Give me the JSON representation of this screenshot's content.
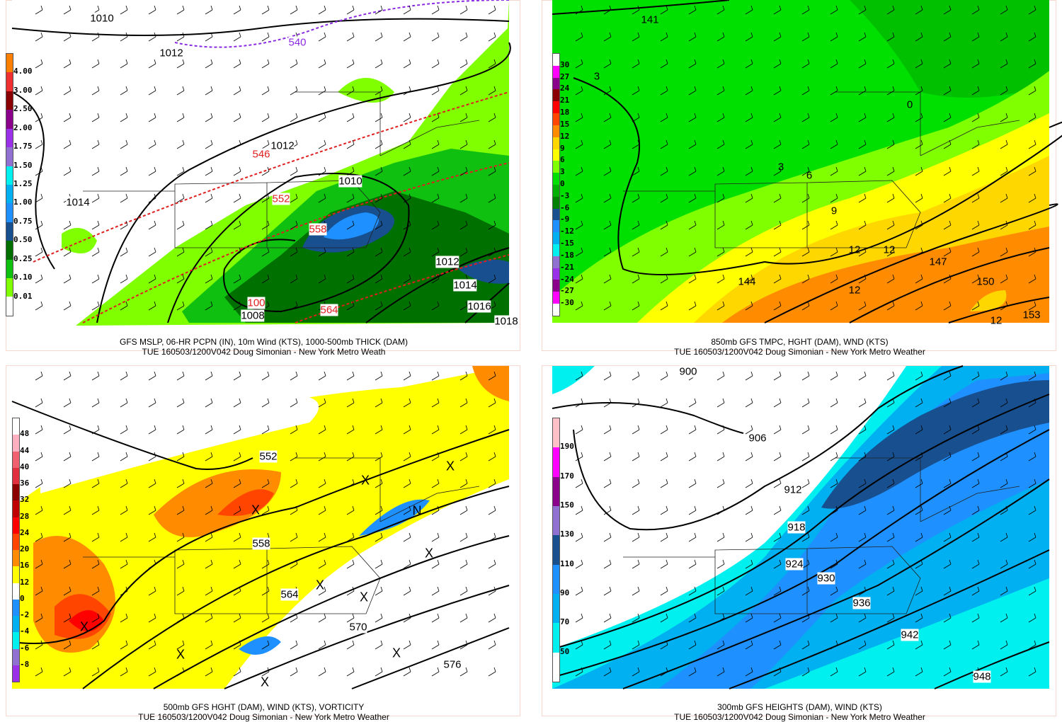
{
  "panels": [
    {
      "id": "mslp-precip",
      "caption": [
        "GFS MSLP, 06-HR PCPN (IN), 10m Wind (KTS), 1000-500mb THICK (DAM)",
        "TUE 160503/1200V042 Doug Simonian - New York Metro Weath"
      ],
      "colorbar": {
        "colors": [
          "#ff8000",
          "#ee3030",
          "#8b0000",
          "#8b008b",
          "#9a30e8",
          "#9070d0",
          "#00f0f0",
          "#00b0f0",
          "#1e90ff",
          "#174f8f",
          "#007000",
          "#10c010",
          "#80ff00",
          "#ffffff"
        ],
        "labels": [
          "4.00",
          "3.00",
          "2.50",
          "2.00",
          "1.75",
          "1.50",
          "1.25",
          "1.00",
          "0.75",
          "0.50",
          "0.25",
          "0.10",
          "0.01"
        ]
      },
      "contour_labels": [
        "1010",
        "1012",
        "540",
        "546",
        "1012",
        "1010",
        "552",
        "558",
        "1014",
        "1012",
        "1014",
        "1016",
        "1018",
        "564",
        "1008",
        "100"
      ],
      "markers": []
    },
    {
      "id": "850mb",
      "caption": [
        "850mb GFS TMPC, HGHT (DAM), WND (KTS)",
        "TUE 160503/1200V042 Doug Simonian - New York Metro Weather"
      ],
      "colorbar": {
        "colors": [
          "#ffffff",
          "#ff00ff",
          "#8b008b",
          "#8b0000",
          "#ff0000",
          "#ff4500",
          "#ff8c00",
          "#ffd700",
          "#ffff00",
          "#80ff00",
          "#00e000",
          "#00b000",
          "#008000",
          "#174f8f",
          "#1e90ff",
          "#00b0f0",
          "#00f0f0",
          "#9070d0",
          "#9a30e8",
          "#8b008b",
          "#ff00ff",
          "#ffffff"
        ],
        "labels": [
          "30",
          "27",
          "24",
          "21",
          "18",
          "15",
          "12",
          "9",
          "6",
          "3",
          "0",
          "-3",
          "-6",
          "-9",
          "-12",
          "-15",
          "-18",
          "-21",
          "-24",
          "-27",
          "-30"
        ]
      },
      "contour_labels": [
        "141",
        "3",
        "0",
        "3",
        "6",
        "9",
        "12",
        "12",
        "144",
        "147",
        "150",
        "12",
        "12",
        "153"
      ],
      "markers": []
    },
    {
      "id": "500mb",
      "caption": [
        "500mb GFS HGHT (DAM), WIND (KTS), VORTICITY",
        "TUE 160503/1200V042 Doug Simonian - New York Metro Weather"
      ],
      "colorbar": {
        "colors": [
          "#ffffff",
          "#ffb0c0",
          "#f06070",
          "#e03040",
          "#8b0000",
          "#c00000",
          "#ff0000",
          "#ff4500",
          "#ff8c00",
          "#ffff00",
          "#ffffff",
          "#1e90ff",
          "#00b0f0",
          "#00f0f0",
          "#9070d0",
          "#9a30e8"
        ],
        "labels": [
          "48",
          "44",
          "40",
          "36",
          "32",
          "28",
          "24",
          "20",
          "16",
          "12",
          "0",
          "-2",
          "-4",
          "-6",
          "-8"
        ]
      },
      "contour_labels": [
        "552",
        "558",
        "564",
        "570",
        "576"
      ],
      "markers": [
        "X",
        "X",
        "X",
        "X",
        "X",
        "X",
        "X",
        "X",
        "X",
        "X",
        "N"
      ]
    },
    {
      "id": "300mb",
      "caption": [
        "300mb GFS HEIGHTS (DAM), WIND (KTS)",
        "TUE 160503/1200V042 Doug Simonian - New York Metro Weather"
      ],
      "colorbar": {
        "colors": [
          "#ffc0c8",
          "#ff00ff",
          "#8b008b",
          "#9070d0",
          "#174f8f",
          "#1e90ff",
          "#00b0f0",
          "#00f0f0",
          "#ffffff"
        ],
        "labels": [
          "190",
          "170",
          "150",
          "130",
          "110",
          "90",
          "70",
          "50"
        ]
      },
      "contour_labels": [
        "900",
        "906",
        "912",
        "918",
        "924",
        "930",
        "936",
        "942",
        "948"
      ],
      "markers": []
    }
  ]
}
